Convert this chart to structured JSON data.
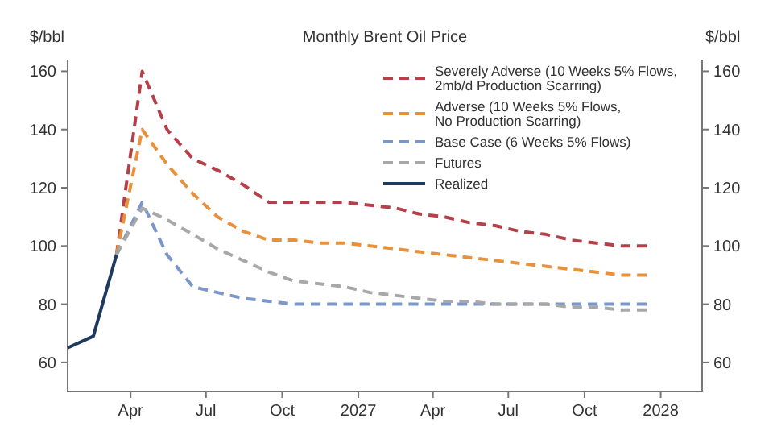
{
  "chart_data": {
    "type": "line",
    "title": "Monthly Brent Oil Price",
    "ylabel": "$/bbl",
    "y2label": "$/bbl",
    "xlim": [
      "2026-01-15",
      "2028-02-20"
    ],
    "xticks": [
      {
        "value": "2026-04-01",
        "label": "Apr"
      },
      {
        "value": "2026-07-01",
        "label": "Jul"
      },
      {
        "value": "2026-10-01",
        "label": "Oct"
      },
      {
        "value": "2027-01-01",
        "label": "2027"
      },
      {
        "value": "2027-04-01",
        "label": "Apr"
      },
      {
        "value": "2027-07-01",
        "label": "Jul"
      },
      {
        "value": "2027-10-01",
        "label": "Oct"
      },
      {
        "value": "2028-01-01",
        "label": "2028"
      }
    ],
    "ylim": [
      50,
      164
    ],
    "yticks": [
      60,
      80,
      100,
      120,
      140,
      160
    ],
    "y2lim": [
      50,
      164
    ],
    "y2ticks": [
      60,
      80,
      100,
      120,
      140,
      160
    ],
    "grid": false,
    "legend": "top right",
    "series": [
      {
        "name": "Severely Adverse (10 Weeks 5% Flows, 2mb/d Production Scarring)",
        "color": "#b5404a",
        "line_style": "dashed",
        "x": [
          "2026-03-15",
          "2026-04-15",
          "2026-05-15",
          "2026-06-15",
          "2026-07-15",
          "2026-08-15",
          "2026-09-15",
          "2026-10-15",
          "2026-11-15",
          "2026-12-15",
          "2027-01-15",
          "2027-02-15",
          "2027-03-15",
          "2027-04-15",
          "2027-05-15",
          "2027-06-15",
          "2027-07-15",
          "2027-08-15",
          "2027-09-15",
          "2027-10-15",
          "2027-11-15",
          "2027-12-15"
        ],
        "values": [
          97,
          160,
          140,
          130,
          126,
          121,
          115,
          115,
          115,
          115,
          114,
          113,
          111,
          110,
          108,
          107,
          105,
          104,
          102,
          101,
          100,
          100
        ]
      },
      {
        "name": "Adverse (10 Weeks 5% Flows, No Production Scarring)",
        "color": "#e8913a",
        "line_style": "dashed",
        "x": [
          "2026-03-15",
          "2026-04-15",
          "2026-05-15",
          "2026-06-15",
          "2026-07-15",
          "2026-08-15",
          "2026-09-15",
          "2026-10-15",
          "2026-11-15",
          "2026-12-15",
          "2027-01-15",
          "2027-02-15",
          "2027-03-15",
          "2027-04-15",
          "2027-05-15",
          "2027-06-15",
          "2027-07-15",
          "2027-08-15",
          "2027-09-15",
          "2027-10-15",
          "2027-11-15",
          "2027-12-15"
        ],
        "values": [
          97,
          140,
          128,
          118,
          110,
          105,
          102,
          102,
          101,
          101,
          100,
          99,
          98,
          97,
          96,
          95,
          94,
          93,
          92,
          91,
          90,
          90
        ]
      },
      {
        "name": "Base Case (6 Weeks 5% Flows)",
        "color": "#7b96c8",
        "line_style": "dashed",
        "x": [
          "2026-03-15",
          "2026-04-15",
          "2026-05-15",
          "2026-06-15",
          "2026-07-15",
          "2026-08-15",
          "2026-09-15",
          "2026-10-15",
          "2026-11-15",
          "2026-12-15",
          "2027-01-15",
          "2027-02-15",
          "2027-03-15",
          "2027-04-15",
          "2027-05-15",
          "2027-06-15",
          "2027-07-15",
          "2027-08-15",
          "2027-09-15",
          "2027-10-15",
          "2027-11-15",
          "2027-12-15"
        ],
        "values": [
          97,
          115,
          97,
          86,
          84,
          82,
          81,
          80,
          80,
          80,
          80,
          80,
          80,
          80,
          80,
          80,
          80,
          80,
          80,
          80,
          80,
          80
        ]
      },
      {
        "name": "Futures",
        "color": "#a8a8a8",
        "line_style": "dashed",
        "x": [
          "2026-03-15",
          "2026-04-15",
          "2026-05-15",
          "2026-06-15",
          "2026-07-15",
          "2026-08-15",
          "2026-09-15",
          "2026-10-15",
          "2026-11-15",
          "2026-12-15",
          "2027-01-15",
          "2027-02-15",
          "2027-03-15",
          "2027-04-15",
          "2027-05-15",
          "2027-06-15",
          "2027-07-15",
          "2027-08-15",
          "2027-09-15",
          "2027-10-15",
          "2027-11-15",
          "2027-12-15"
        ],
        "values": [
          97,
          113,
          109,
          104,
          99,
          95,
          91,
          88,
          87,
          86,
          84,
          83,
          82,
          81,
          81,
          80,
          80,
          80,
          79,
          79,
          78,
          78
        ]
      },
      {
        "name": "Realized",
        "color": "#1f3a5f",
        "line_style": "solid",
        "x": [
          "2026-01-15",
          "2026-02-15",
          "2026-03-15"
        ],
        "values": [
          65,
          69,
          97
        ]
      }
    ]
  }
}
